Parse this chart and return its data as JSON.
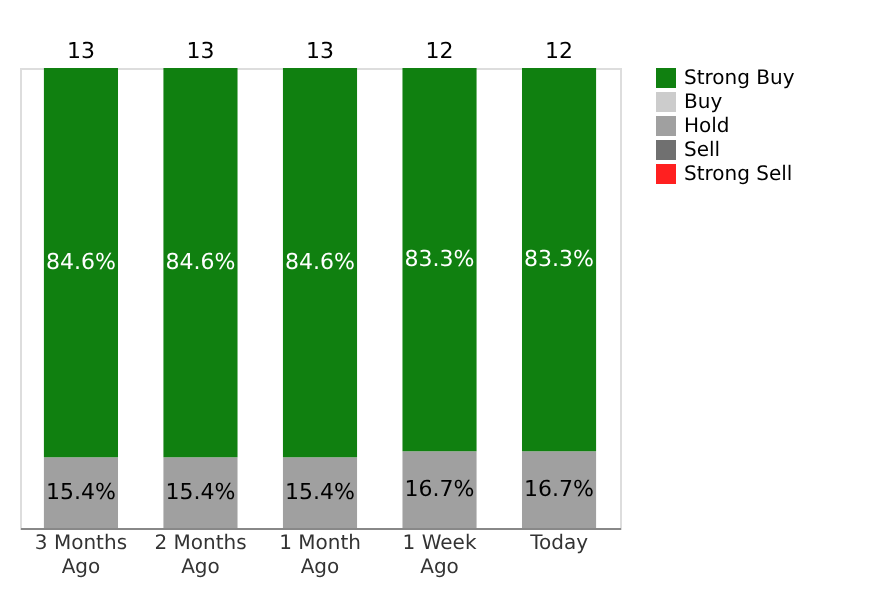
{
  "chart_data": {
    "type": "bar",
    "stacked": true,
    "tick_labels": "x",
    "legend": "right",
    "grid": false,
    "categories": [
      "3 Months Ago",
      "2 Months Ago",
      "1 Month Ago",
      "1 Week Ago",
      "Today"
    ],
    "series": [
      {
        "name": "Strong Sell",
        "color": "#ff2020",
        "values": [
          0,
          0,
          0,
          0,
          0
        ]
      },
      {
        "name": "Sell",
        "color": "#707070",
        "values": [
          0,
          0,
          0,
          0,
          0
        ]
      },
      {
        "name": "Hold",
        "color": "#a0a0a0",
        "values": [
          15.4,
          15.4,
          15.4,
          16.7,
          16.7
        ],
        "value_labels": [
          "15.4%",
          "15.4%",
          "15.4%",
          "16.7%",
          "16.7%"
        ]
      },
      {
        "name": "Buy",
        "color": "#cccccc",
        "values": [
          0,
          0,
          0,
          0,
          0
        ]
      },
      {
        "name": "Strong Buy",
        "color": "#108010",
        "values": [
          84.6,
          84.6,
          84.6,
          83.3,
          83.3
        ],
        "value_labels": [
          "84.6%",
          "84.6%",
          "84.6%",
          "83.3%",
          "83.3%"
        ]
      }
    ],
    "annotations": [
      {
        "text": "13",
        "x": "3 Months Ago",
        "y": 100
      },
      {
        "text": "13",
        "x": "2 Months Ago",
        "y": 100
      },
      {
        "text": "13",
        "x": "1 Month Ago",
        "y": 100
      },
      {
        "text": "12",
        "x": "1 Week Ago",
        "y": 100
      },
      {
        "text": "12",
        "x": "Today",
        "y": 100
      }
    ]
  }
}
